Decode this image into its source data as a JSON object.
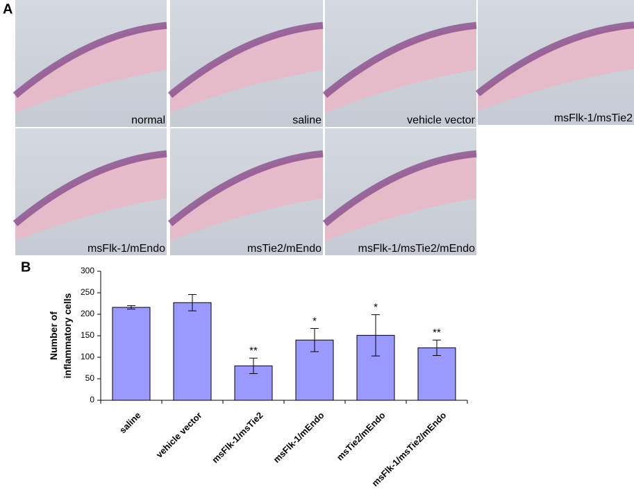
{
  "panel_labels": [
    "A",
    "B"
  ],
  "images": [
    "normal",
    "saline",
    "vehicle vector",
    "msFlk-1/msTie2",
    "msFlk-1/mEndo",
    "msTie2/mEndo",
    "msFlk-1/msTie2/mEndo"
  ],
  "chart_data": {
    "type": "bar",
    "ylabel": [
      "Number of",
      "inflammatory cells"
    ],
    "categories": [
      "saline",
      "vehicle vector",
      "msFlk-1/msTie2",
      "msFlk-1/mEndo",
      "msTie2/mEndo",
      "msFlk-1/msTie2/mEndo"
    ],
    "values": [
      216,
      227,
      80,
      140,
      151,
      122
    ],
    "errors": [
      4,
      19,
      18,
      27,
      48,
      18
    ],
    "annotations": [
      null,
      null,
      "**",
      "*",
      "*",
      "**"
    ],
    "color": "#9999ff",
    "ylim": [
      0,
      300
    ],
    "yticks": [
      0,
      50,
      100,
      150,
      200,
      250,
      300
    ]
  }
}
